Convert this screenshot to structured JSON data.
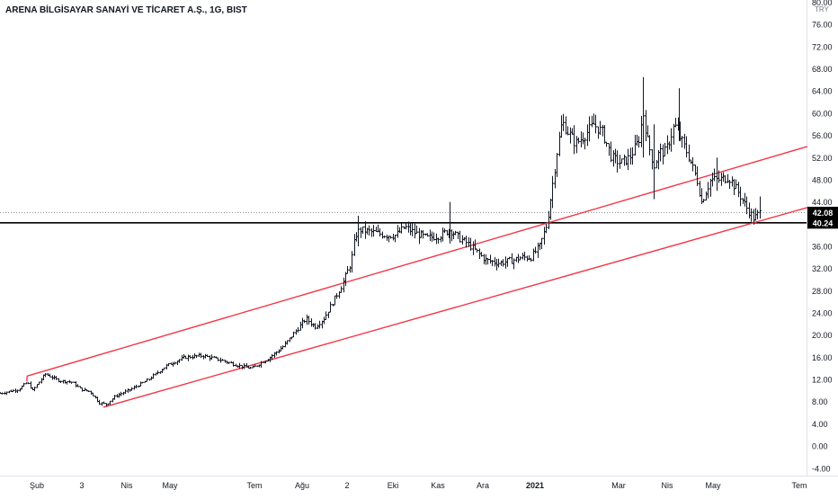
{
  "chart_data": {
    "type": "ohlc",
    "title": "ARENA BİLGİSAYAR SANAYİ VE TİCARET A.Ş., 1G, BIST",
    "currency": "TRY",
    "ylim": [
      -4,
      80
    ],
    "y_ticks": [
      "80.00",
      "76.00",
      "72.00",
      "68.00",
      "64.00",
      "60.00",
      "56.00",
      "52.00",
      "48.00",
      "44.00",
      "40.00",
      "36.00",
      "32.00",
      "28.00",
      "24.00",
      "20.00",
      "16.00",
      "12.00",
      "8.00",
      "4.00",
      "0.00",
      "-4.00"
    ],
    "x_ticks": [
      "Şub",
      "3",
      "Nis",
      "May",
      "Tem",
      "Ağu",
      "2",
      "Eki",
      "Kas",
      "Ara",
      "2021",
      "Mar",
      "Nis",
      "May",
      "Tem"
    ],
    "price_labels": {
      "last": "42.08",
      "level": "40.24"
    },
    "level_line": 40.24,
    "last_price": 42.08,
    "channel_upper": {
      "start": {
        "x": 30,
        "y": 12.6
      },
      "end": {
        "x": 898,
        "y": 54.0
      }
    },
    "channel_lower": {
      "start": {
        "x": 115,
        "y": 7.0
      },
      "end": {
        "x": 898,
        "y": 43.0
      }
    },
    "series_anchors": [
      [
        0,
        9.5
      ],
      [
        20,
        10.2
      ],
      [
        30,
        11.5
      ],
      [
        36,
        10.0
      ],
      [
        50,
        13.0
      ],
      [
        65,
        11.8
      ],
      [
        80,
        11.5
      ],
      [
        90,
        10.2
      ],
      [
        100,
        9.8
      ],
      [
        110,
        7.8
      ],
      [
        118,
        7.5
      ],
      [
        128,
        9.0
      ],
      [
        145,
        10.2
      ],
      [
        165,
        12.0
      ],
      [
        185,
        14.5
      ],
      [
        205,
        16.0
      ],
      [
        225,
        16.3
      ],
      [
        245,
        15.5
      ],
      [
        265,
        14.5
      ],
      [
        280,
        14.0
      ],
      [
        290,
        15.0
      ],
      [
        300,
        16.0
      ],
      [
        315,
        18.0
      ],
      [
        330,
        21.0
      ],
      [
        340,
        23.0
      ],
      [
        350,
        21.5
      ],
      [
        360,
        23.0
      ],
      [
        370,
        26.0
      ],
      [
        380,
        29.0
      ],
      [
        390,
        33.0
      ],
      [
        395,
        38.0
      ],
      [
        400,
        39.0
      ],
      [
        415,
        38.5
      ],
      [
        430,
        38.0
      ],
      [
        440,
        38.0
      ],
      [
        450,
        39.5
      ],
      [
        460,
        38.5
      ],
      [
        475,
        37.5
      ],
      [
        490,
        38.0
      ],
      [
        500,
        39.0
      ],
      [
        510,
        37.5
      ],
      [
        520,
        36.5
      ],
      [
        530,
        35.0
      ],
      [
        540,
        33.5
      ],
      [
        555,
        33.0
      ],
      [
        570,
        33.5
      ],
      [
        580,
        34.0
      ],
      [
        590,
        34.0
      ],
      [
        600,
        36.0
      ],
      [
        608,
        40.0
      ],
      [
        615,
        48.0
      ],
      [
        620,
        54.0
      ],
      [
        625,
        58.5
      ],
      [
        630,
        57.0
      ],
      [
        640,
        54.5
      ],
      [
        650,
        56.0
      ],
      [
        660,
        58.0
      ],
      [
        670,
        56.5
      ],
      [
        680,
        52.0
      ],
      [
        690,
        51.0
      ],
      [
        700,
        52.0
      ],
      [
        710,
        55.0
      ],
      [
        715,
        60.0
      ],
      [
        720,
        55.0
      ],
      [
        727,
        50.5
      ],
      [
        733,
        53.0
      ],
      [
        740,
        53.0
      ],
      [
        750,
        58.0
      ],
      [
        755,
        56.0
      ],
      [
        765,
        52.5
      ],
      [
        775,
        48.0
      ],
      [
        780,
        44.0
      ],
      [
        790,
        48.0
      ],
      [
        800,
        48.0
      ],
      [
        810,
        48.5
      ],
      [
        820,
        46.0
      ],
      [
        830,
        43.0
      ],
      [
        838,
        41.0
      ],
      [
        845,
        42.08
      ]
    ]
  }
}
